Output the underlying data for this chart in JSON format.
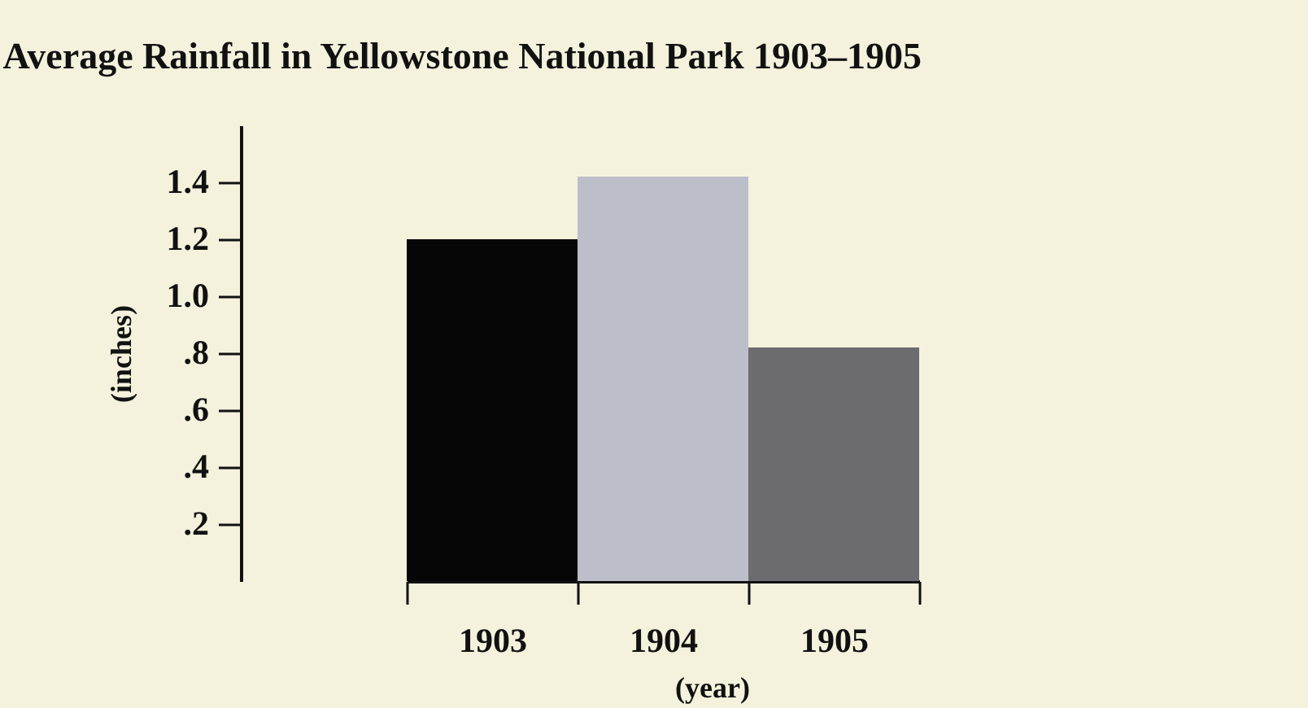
{
  "chart_data": {
    "type": "bar",
    "title": "Average Rainfall in Yellowstone National Park 1903–1905",
    "categories": [
      "1903",
      "1904",
      "1905"
    ],
    "values": [
      1.2,
      1.42,
      0.82
    ],
    "colors": [
      "#060606",
      "#bcbfc9",
      "#6b6b70"
    ],
    "xlabel": "(year)",
    "ylabel": "(inches)",
    "ylim": [
      0,
      1.6
    ],
    "yticks": [
      {
        "value": 0.2,
        "label": ".2"
      },
      {
        "value": 0.4,
        "label": ".4"
      },
      {
        "value": 0.6,
        "label": ".6"
      },
      {
        "value": 0.8,
        "label": ".8"
      },
      {
        "value": 1.0,
        "label": "1.0"
      },
      {
        "value": 1.2,
        "label": "1.2"
      },
      {
        "value": 1.4,
        "label": "1.4"
      }
    ],
    "grid": false,
    "legend": false
  }
}
